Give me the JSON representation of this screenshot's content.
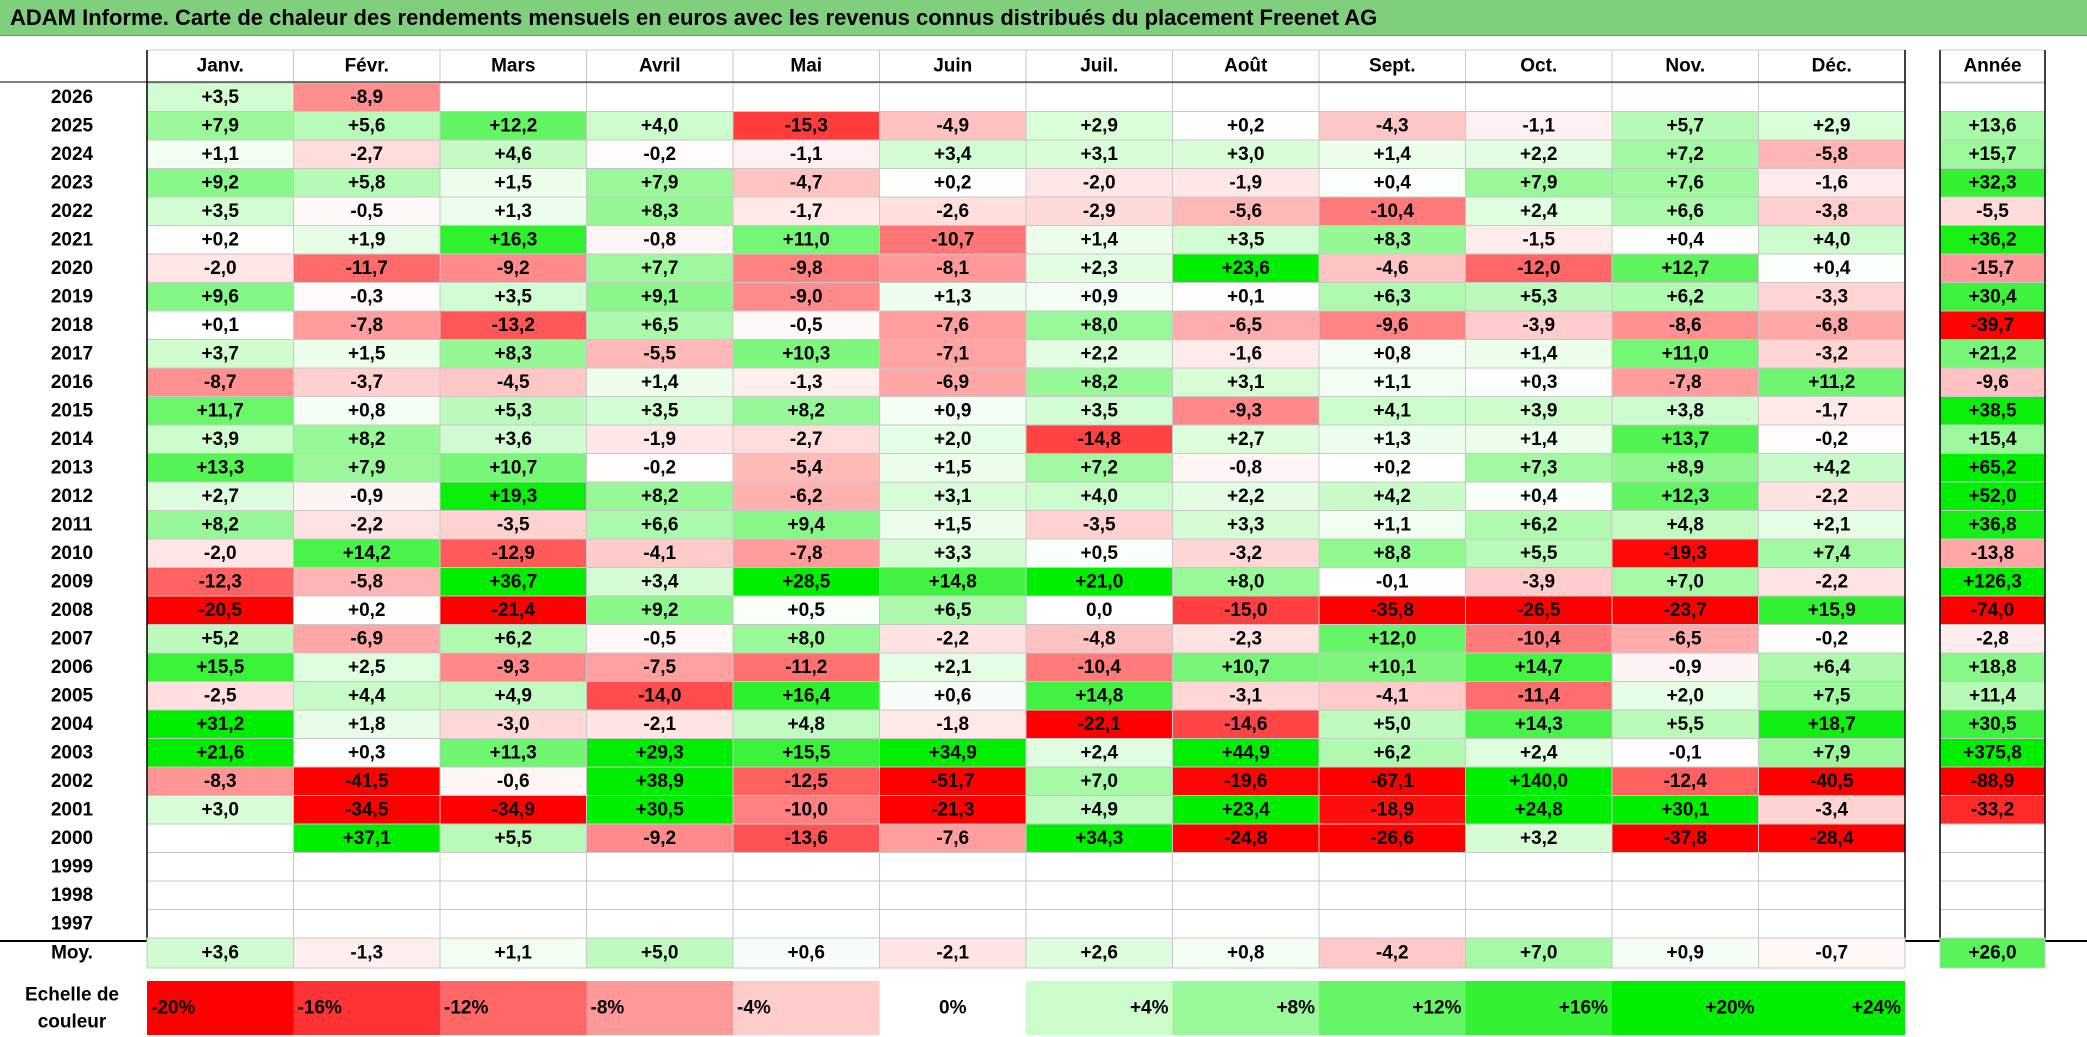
{
  "title": "ADAM Informe. Carte de chaleur des rendements mensuels en euros avec les revenus connus distribués du placement Freenet AG",
  "chart_data": {
    "type": "heatmap",
    "title": "ADAM Informe. Carte de chaleur des rendements mensuels en euros avec les revenus connus distribués du placement Freenet AG",
    "months": [
      "Janv.",
      "Févr.",
      "Mars",
      "Avril",
      "Mai",
      "Juin",
      "Juil.",
      "Août",
      "Sept.",
      "Oct.",
      "Nov.",
      "Déc."
    ],
    "year_header": "Année",
    "rows": [
      {
        "year": "2026",
        "values": [
          "+3,5",
          "-8,9",
          "",
          "",
          "",
          "",
          "",
          "",
          "",
          "",
          "",
          ""
        ],
        "annual": ""
      },
      {
        "year": "2025",
        "values": [
          "+7,9",
          "+5,6",
          "+12,2",
          "+4,0",
          "-15,3",
          "-4,9",
          "+2,9",
          "+0,2",
          "-4,3",
          "-1,1",
          "+5,7",
          "+2,9"
        ],
        "annual": "+13,6"
      },
      {
        "year": "2024",
        "values": [
          "+1,1",
          "-2,7",
          "+4,6",
          "-0,2",
          "-1,1",
          "+3,4",
          "+3,1",
          "+3,0",
          "+1,4",
          "+2,2",
          "+7,2",
          "-5,8"
        ],
        "annual": "+15,7"
      },
      {
        "year": "2023",
        "values": [
          "+9,2",
          "+5,8",
          "+1,5",
          "+7,9",
          "-4,7",
          "+0,2",
          "-2,0",
          "-1,9",
          "+0,4",
          "+7,9",
          "+7,6",
          "-1,6"
        ],
        "annual": "+32,3"
      },
      {
        "year": "2022",
        "values": [
          "+3,5",
          "-0,5",
          "+1,3",
          "+8,3",
          "-1,7",
          "-2,6",
          "-2,9",
          "-5,6",
          "-10,4",
          "+2,4",
          "+6,6",
          "-3,8"
        ],
        "annual": "-5,5"
      },
      {
        "year": "2021",
        "values": [
          "+0,2",
          "+1,9",
          "+16,3",
          "-0,8",
          "+11,0",
          "-10,7",
          "+1,4",
          "+3,5",
          "+8,3",
          "-1,5",
          "+0,4",
          "+4,0"
        ],
        "annual": "+36,2"
      },
      {
        "year": "2020",
        "values": [
          "-2,0",
          "-11,7",
          "-9,2",
          "+7,7",
          "-9,8",
          "-8,1",
          "+2,3",
          "+23,6",
          "-4,6",
          "-12,0",
          "+12,7",
          "+0,4"
        ],
        "annual": "-15,7"
      },
      {
        "year": "2019",
        "values": [
          "+9,6",
          "-0,3",
          "+3,5",
          "+9,1",
          "-9,0",
          "+1,3",
          "+0,9",
          "+0,1",
          "+6,3",
          "+5,3",
          "+6,2",
          "-3,3"
        ],
        "annual": "+30,4"
      },
      {
        "year": "2018",
        "values": [
          "+0,1",
          "-7,8",
          "-13,2",
          "+6,5",
          "-0,5",
          "-7,6",
          "+8,0",
          "-6,5",
          "-9,6",
          "-3,9",
          "-8,6",
          "-6,8"
        ],
        "annual": "-39,7"
      },
      {
        "year": "2017",
        "values": [
          "+3,7",
          "+1,5",
          "+8,3",
          "-5,5",
          "+10,3",
          "-7,1",
          "+2,2",
          "-1,6",
          "+0,8",
          "+1,4",
          "+11,0",
          "-3,2"
        ],
        "annual": "+21,2"
      },
      {
        "year": "2016",
        "values": [
          "-8,7",
          "-3,7",
          "-4,5",
          "+1,4",
          "-1,3",
          "-6,9",
          "+8,2",
          "+3,1",
          "+1,1",
          "+0,3",
          "-7,8",
          "+11,2"
        ],
        "annual": "-9,6"
      },
      {
        "year": "2015",
        "values": [
          "+11,7",
          "+0,8",
          "+5,3",
          "+3,5",
          "+8,2",
          "+0,9",
          "+3,5",
          "-9,3",
          "+4,1",
          "+3,9",
          "+3,8",
          "-1,7"
        ],
        "annual": "+38,5"
      },
      {
        "year": "2014",
        "values": [
          "+3,9",
          "+8,2",
          "+3,6",
          "-1,9",
          "-2,7",
          "+2,0",
          "-14,8",
          "+2,7",
          "+1,3",
          "+1,4",
          "+13,7",
          "-0,2"
        ],
        "annual": "+15,4"
      },
      {
        "year": "2013",
        "values": [
          "+13,3",
          "+7,9",
          "+10,7",
          "-0,2",
          "-5,4",
          "+1,5",
          "+7,2",
          "-0,8",
          "+0,2",
          "+7,3",
          "+8,9",
          "+4,2"
        ],
        "annual": "+65,2"
      },
      {
        "year": "2012",
        "values": [
          "+2,7",
          "-0,9",
          "+19,3",
          "+8,2",
          "-6,2",
          "+3,1",
          "+4,0",
          "+2,2",
          "+4,2",
          "+0,4",
          "+12,3",
          "-2,2"
        ],
        "annual": "+52,0"
      },
      {
        "year": "2011",
        "values": [
          "+8,2",
          "-2,2",
          "-3,5",
          "+6,6",
          "+9,4",
          "+1,5",
          "-3,5",
          "+3,3",
          "+1,1",
          "+6,2",
          "+4,8",
          "+2,1"
        ],
        "annual": "+36,8"
      },
      {
        "year": "2010",
        "values": [
          "-2,0",
          "+14,2",
          "-12,9",
          "-4,1",
          "-7,8",
          "+3,3",
          "+0,5",
          "-3,2",
          "+8,8",
          "+5,5",
          "-19,3",
          "+7,4"
        ],
        "annual": "-13,8"
      },
      {
        "year": "2009",
        "values": [
          "-12,3",
          "-5,8",
          "+36,7",
          "+3,4",
          "+28,5",
          "+14,8",
          "+21,0",
          "+8,0",
          "-0,1",
          "-3,9",
          "+7,0",
          "-2,2"
        ],
        "annual": "+126,3"
      },
      {
        "year": "2008",
        "values": [
          "-20,5",
          "+0,2",
          "-21,4",
          "+9,2",
          "+0,5",
          "+6,5",
          "0,0",
          "-15,0",
          "-35,8",
          "-26,5",
          "-23,7",
          "+15,9"
        ],
        "annual": "-74,0"
      },
      {
        "year": "2007",
        "values": [
          "+5,2",
          "-6,9",
          "+6,2",
          "-0,5",
          "+8,0",
          "-2,2",
          "-4,8",
          "-2,3",
          "+12,0",
          "-10,4",
          "-6,5",
          "-0,2"
        ],
        "annual": "-2,8"
      },
      {
        "year": "2006",
        "values": [
          "+15,5",
          "+2,5",
          "-9,3",
          "-7,5",
          "-11,2",
          "+2,1",
          "-10,4",
          "+10,7",
          "+10,1",
          "+14,7",
          "-0,9",
          "+6,4"
        ],
        "annual": "+18,8"
      },
      {
        "year": "2005",
        "values": [
          "-2,5",
          "+4,4",
          "+4,9",
          "-14,0",
          "+16,4",
          "+0,6",
          "+14,8",
          "-3,1",
          "-4,1",
          "-11,4",
          "+2,0",
          "+7,5"
        ],
        "annual": "+11,4"
      },
      {
        "year": "2004",
        "values": [
          "+31,2",
          "+1,8",
          "-3,0",
          "-2,1",
          "+4,8",
          "-1,8",
          "-22,1",
          "-14,6",
          "+5,0",
          "+14,3",
          "+5,5",
          "+18,7"
        ],
        "annual": "+30,5"
      },
      {
        "year": "2003",
        "values": [
          "+21,6",
          "+0,3",
          "+11,3",
          "+29,3",
          "+15,5",
          "+34,9",
          "+2,4",
          "+44,9",
          "+6,2",
          "+2,4",
          "-0,1",
          "+7,9"
        ],
        "annual": "+375,8"
      },
      {
        "year": "2002",
        "values": [
          "-8,3",
          "-41,5",
          "-0,6",
          "+38,9",
          "-12,5",
          "-51,7",
          "+7,0",
          "-19,6",
          "-67,1",
          "+140,0",
          "-12,4",
          "-40,5"
        ],
        "annual": "-88,9"
      },
      {
        "year": "2001",
        "values": [
          "+3,0",
          "-34,5",
          "-34,9",
          "+30,5",
          "-10,0",
          "-21,3",
          "+4,9",
          "+23,4",
          "-18,9",
          "+24,8",
          "+30,1",
          "-3,4"
        ],
        "annual": "-33,2"
      },
      {
        "year": "2000",
        "values": [
          "",
          "+37,1",
          "+5,5",
          "-9,2",
          "-13,6",
          "-7,6",
          "+34,3",
          "-24,8",
          "-26,6",
          "+3,2",
          "-37,8",
          "-28,4"
        ],
        "annual": ""
      },
      {
        "year": "1999",
        "values": [
          "",
          "",
          "",
          "",
          "",
          "",
          "",
          "",
          "",
          "",
          "",
          ""
        ],
        "annual": ""
      },
      {
        "year": "1998",
        "values": [
          "",
          "",
          "",
          "",
          "",
          "",
          "",
          "",
          "",
          "",
          "",
          ""
        ],
        "annual": ""
      },
      {
        "year": "1997",
        "values": [
          "",
          "",
          "",
          "",
          "",
          "",
          "",
          "",
          "",
          "",
          "",
          ""
        ],
        "annual": ""
      }
    ],
    "average": {
      "label": "Moy.",
      "values": [
        "+3,6",
        "-1,3",
        "+1,1",
        "+5,0",
        "+0,6",
        "-2,1",
        "+2,6",
        "+0,8",
        "-4,2",
        "+7,0",
        "+0,9",
        "-0,7"
      ],
      "annual": "+26,0"
    },
    "scale": {
      "label_line1": "Echelle de",
      "label_line2": "couleur",
      "steps": [
        "-20%",
        "-16%",
        "-12%",
        "-8%",
        "-4%",
        "0%",
        "+4%",
        "+8%",
        "+12%",
        "+16%",
        "+20%",
        "+24%"
      ]
    },
    "colors": {
      "red": "#ff0000",
      "green": "#00ee00",
      "neutral": "#ffffff",
      "grid": "#c8c8c8",
      "title_bg": "#7fcf7f"
    }
  }
}
